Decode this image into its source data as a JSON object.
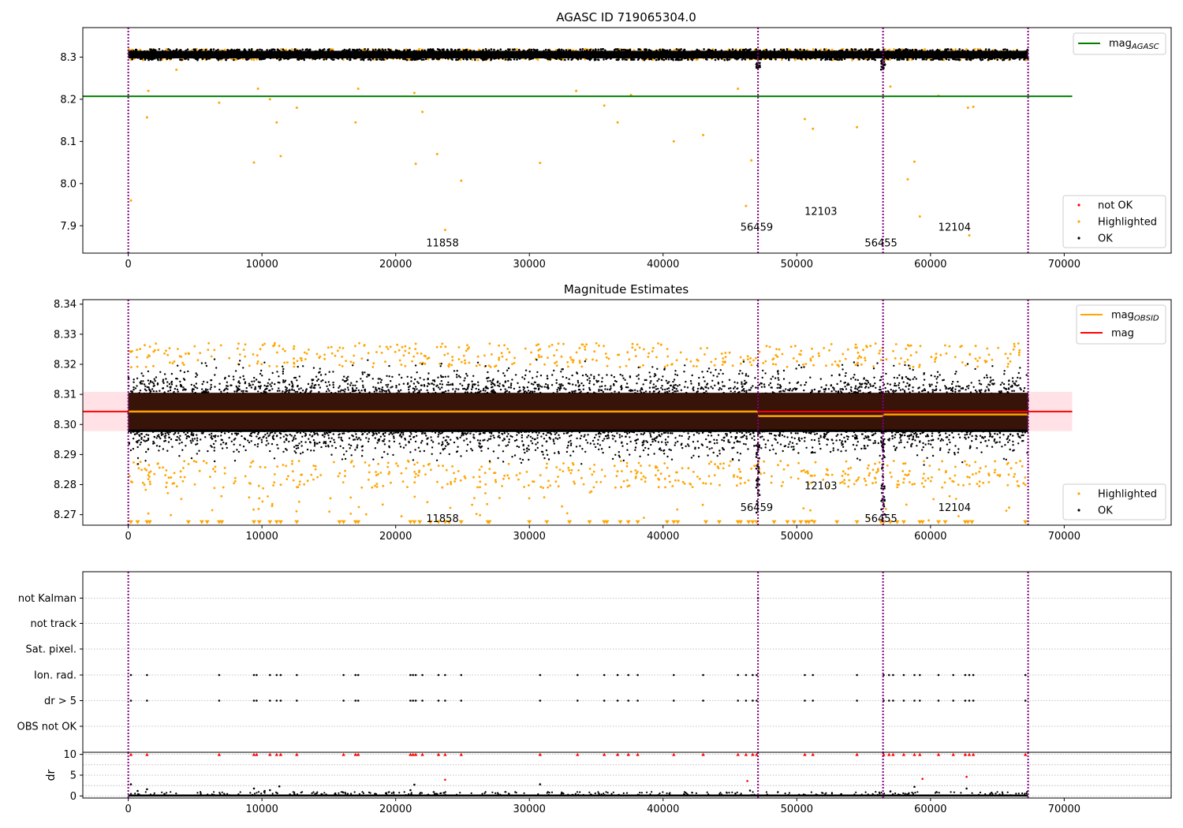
{
  "chart_data": [
    {
      "type": "scatter",
      "title": "AGASC ID 719065304.0",
      "xlabel": "",
      "ylabel": "",
      "xlim": [
        -3400,
        78000
      ],
      "ylim": [
        7.835,
        8.37
      ],
      "x_ticks": [
        "0",
        "10000",
        "20000",
        "30000",
        "40000",
        "50000",
        "60000",
        "70000"
      ],
      "y_ticks": [
        "7.9",
        "8.0",
        "8.1",
        "8.2",
        "8.3"
      ],
      "grid": false,
      "band": {
        "low": 8.293,
        "high": 8.319
      },
      "agasc_mag": 8.207,
      "agasc_line_x": [
        -3400,
        70600
      ],
      "obsid_boundaries": [
        0,
        47100,
        56450,
        67300
      ],
      "obsid_labels": [
        {
          "text": "11858",
          "x": 23500,
          "y": 7.86
        },
        {
          "text": "56459",
          "x": 47000,
          "y": 7.898
        },
        {
          "text": "12103",
          "x": 51800,
          "y": 7.935
        },
        {
          "text": "56455",
          "x": 56300,
          "y": 7.86
        },
        {
          "text": "12104",
          "x": 61800,
          "y": 7.898
        }
      ],
      "highlighted_points": [
        [
          200,
          7.96
        ],
        [
          1400,
          8.157
        ],
        [
          1500,
          8.22
        ],
        [
          3600,
          8.27
        ],
        [
          6800,
          8.192
        ],
        [
          9400,
          8.05
        ],
        [
          9700,
          8.225
        ],
        [
          10600,
          8.2
        ],
        [
          11100,
          8.145
        ],
        [
          11400,
          8.065
        ],
        [
          12600,
          8.18
        ],
        [
          17000,
          8.145
        ],
        [
          17200,
          8.225
        ],
        [
          21400,
          8.215
        ],
        [
          21500,
          8.047
        ],
        [
          22000,
          8.17
        ],
        [
          23100,
          8.07
        ],
        [
          23700,
          7.89
        ],
        [
          24900,
          8.007
        ],
        [
          30800,
          8.049
        ],
        [
          33500,
          8.22
        ],
        [
          35600,
          8.185
        ],
        [
          36600,
          8.145
        ],
        [
          37600,
          8.21
        ],
        [
          40800,
          8.1
        ],
        [
          43000,
          8.115
        ],
        [
          45600,
          8.225
        ],
        [
          46200,
          7.947
        ],
        [
          46600,
          8.055
        ],
        [
          50600,
          8.153
        ],
        [
          51200,
          8.13
        ],
        [
          54500,
          8.134
        ],
        [
          57000,
          8.23
        ],
        [
          58300,
          8.01
        ],
        [
          58800,
          8.052
        ],
        [
          59200,
          7.922
        ],
        [
          60600,
          8.208
        ],
        [
          62800,
          8.18
        ],
        [
          62900,
          7.877
        ],
        [
          63200,
          8.182
        ]
      ],
      "legend_position": "top-right",
      "legend_top": [
        {
          "label": "mag",
          "sub": "AGASC",
          "color": "#008000",
          "kind": "line"
        }
      ],
      "legend_bottom": [
        {
          "label": "not OK",
          "color": "#ff0000",
          "kind": "dot"
        },
        {
          "label": "Highlighted",
          "color": "#ffa500",
          "kind": "dot"
        },
        {
          "label": "OK",
          "color": "#000000",
          "kind": "dot"
        }
      ]
    },
    {
      "type": "scatter",
      "title": "Magnitude Estimates",
      "xlabel": "",
      "ylabel": "",
      "xlim": [
        -3400,
        78000
      ],
      "ylim": [
        8.2665,
        8.3415
      ],
      "x_ticks": [
        "0",
        "10000",
        "20000",
        "30000",
        "40000",
        "50000",
        "60000",
        "70000"
      ],
      "y_ticks": [
        "8.27",
        "8.28",
        "8.29",
        "8.30",
        "8.31",
        "8.32",
        "8.33",
        "8.34"
      ],
      "grid": false,
      "mean_mag": 8.3043,
      "mean_band": [
        8.2978,
        8.3108
      ],
      "mean_x": [
        -3400,
        70600
      ],
      "obsid_segments": [
        {
          "x": [
            0,
            47100
          ],
          "mag": 8.3043
        },
        {
          "x": [
            47100,
            56450
          ],
          "mag": 8.3028
        },
        {
          "x": [
            56450,
            67300
          ],
          "mag": 8.3033
        }
      ],
      "black_band": [
        8.2975,
        8.3105
      ],
      "dense_cloud": [
        8.286,
        8.322
      ],
      "obsid_boundaries": [
        0,
        47100,
        56450,
        67300
      ],
      "obsid_labels": [
        {
          "text": "11858",
          "x": 23500,
          "y": 8.2688
        },
        {
          "text": "56459",
          "x": 47000,
          "y": 8.2725
        },
        {
          "text": "12103",
          "x": 51800,
          "y": 8.2798
        },
        {
          "text": "56455",
          "x": 56300,
          "y": 8.2688
        },
        {
          "text": "12104",
          "x": 61800,
          "y": 8.2725
        }
      ],
      "lower_limit_markers": [
        200,
        700,
        1400,
        1600,
        4500,
        5500,
        5900,
        6800,
        7000,
        9400,
        9800,
        10600,
        11100,
        11400,
        12600,
        15800,
        16100,
        17000,
        17200,
        21100,
        21400,
        21800,
        22600,
        23200,
        23700,
        24000,
        24900,
        26900,
        27000,
        30000,
        31300,
        33000,
        34500,
        35600,
        35800,
        36800,
        37400,
        38100,
        40300,
        40800,
        41100,
        43200,
        44200,
        45600,
        45800,
        46400,
        46700,
        47000,
        48300,
        49300,
        49800,
        50300,
        50700,
        50900,
        51300,
        53000,
        54500,
        56300,
        56500,
        57000,
        57500,
        58000,
        59200,
        59400,
        60600,
        61100,
        62600,
        62800,
        63100,
        67100
      ],
      "legend_position": "top-right",
      "legend_top": [
        {
          "label": "mag",
          "sub": "OBSID",
          "color": "#ffa500",
          "kind": "line"
        },
        {
          "label": "mag",
          "sub": "",
          "color": "#ff0000",
          "kind": "line"
        }
      ],
      "legend_bottom": [
        {
          "label": "Highlighted",
          "color": "#ffa500",
          "kind": "dot"
        },
        {
          "label": "OK",
          "color": "#000000",
          "kind": "dot"
        }
      ]
    },
    {
      "type": "scatter",
      "title": "",
      "xlabel": "",
      "ylabel": "",
      "xlim": [
        -3400,
        78000
      ],
      "categories": [
        "not Kalman",
        "not track",
        "Sat. pixel.",
        "Ion. rad.",
        "dr > 5",
        "OBS not OK"
      ],
      "grid": true,
      "obsid_boundaries": [
        0,
        47100,
        56450,
        67300
      ],
      "flag_ion_rad": [
        200,
        1400,
        6800,
        9400,
        9600,
        10600,
        11100,
        11400,
        12600,
        16100,
        17000,
        17200,
        21100,
        21300,
        21500,
        22000,
        23200,
        23700,
        24900,
        30800,
        33600,
        35600,
        36600,
        37400,
        38100,
        40800,
        43000,
        45600,
        46200,
        46700,
        47000,
        50600,
        51200,
        54500,
        56500,
        56900,
        57200,
        58000,
        58800,
        59200,
        60600,
        61700,
        62600,
        62900,
        63200,
        67100
      ],
      "flag_dr5": [
        200,
        1400,
        6800,
        9400,
        9600,
        10600,
        11100,
        11400,
        12600,
        16100,
        17000,
        17200,
        21100,
        21300,
        21500,
        22000,
        23200,
        23700,
        24900,
        30800,
        33600,
        35600,
        36600,
        37400,
        38100,
        40800,
        43000,
        45600,
        46200,
        46700,
        47000,
        50600,
        51200,
        54500,
        56500,
        56900,
        57200,
        58000,
        58800,
        59200,
        60600,
        61700,
        62600,
        62900,
        63200,
        67100
      ]
    },
    {
      "type": "scatter",
      "title": "",
      "xlabel": "",
      "ylabel": "dr",
      "xlim": [
        -3400,
        78000
      ],
      "ylim": [
        -0.5,
        10.5
      ],
      "x_ticks": [
        "0",
        "10000",
        "20000",
        "30000",
        "40000",
        "50000",
        "60000",
        "70000"
      ],
      "y_ticks": [
        "0",
        "5",
        "10"
      ],
      "grid": true,
      "obsid_boundaries": [
        0,
        47100,
        56450,
        67300
      ],
      "capped_red": [
        200,
        1400,
        6800,
        9400,
        9600,
        10600,
        11100,
        11400,
        12600,
        16100,
        17000,
        17200,
        21100,
        21300,
        21500,
        22000,
        23200,
        23700,
        24900,
        30800,
        33600,
        35600,
        36600,
        37400,
        38100,
        40800,
        43000,
        45600,
        46200,
        46700,
        47000,
        50600,
        51200,
        54500,
        56500,
        56900,
        57200,
        58000,
        58800,
        59200,
        60600,
        61700,
        62600,
        62900,
        63200,
        67100
      ],
      "scatter_red": [
        [
          23700,
          3.9
        ],
        [
          46300,
          3.6
        ],
        [
          59400,
          4.1
        ],
        [
          62700,
          4.6
        ]
      ],
      "scatter_black": [
        [
          200,
          2.8
        ],
        [
          700,
          1.2
        ],
        [
          1400,
          1.6
        ],
        [
          9400,
          1.8
        ],
        [
          10200,
          1.2
        ],
        [
          10600,
          1.4
        ],
        [
          11300,
          2.3
        ],
        [
          21100,
          1.4
        ],
        [
          21400,
          2.7
        ],
        [
          30800,
          2.8
        ],
        [
          46500,
          1.3
        ],
        [
          57000,
          1.1
        ],
        [
          58800,
          2.2
        ],
        [
          62700,
          1.8
        ]
      ]
    }
  ]
}
